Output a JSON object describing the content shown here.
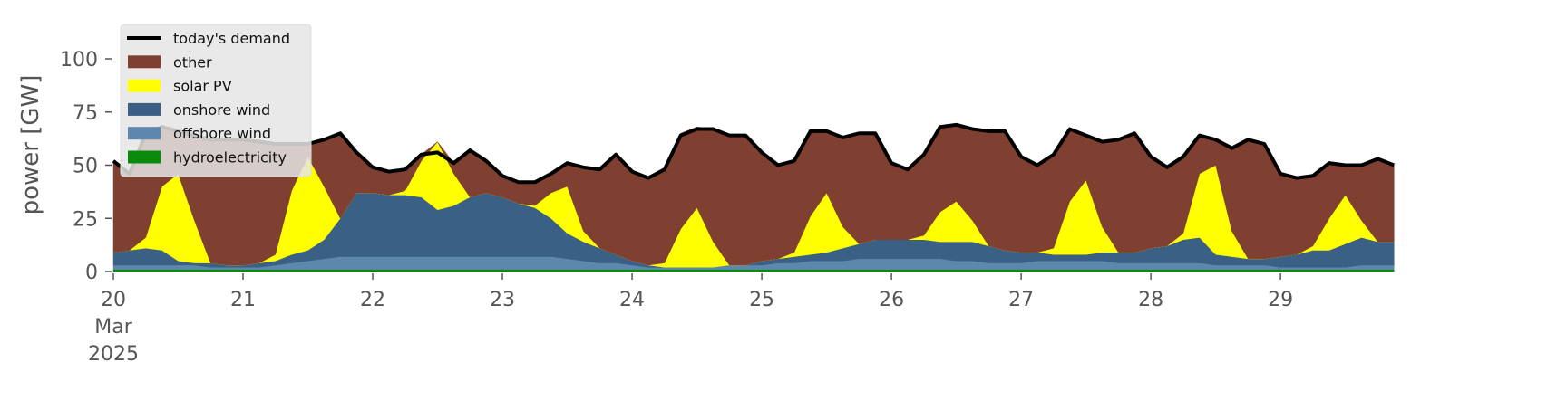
{
  "chart_data": {
    "type": "stacked_area",
    "ylabel": "power [GW]",
    "x": [
      20,
      20.125,
      20.25,
      20.375,
      20.5,
      20.625,
      20.75,
      20.875,
      21,
      21.125,
      21.25,
      21.375,
      21.5,
      21.625,
      21.75,
      21.875,
      22,
      22.125,
      22.25,
      22.375,
      22.5,
      22.625,
      22.75,
      22.875,
      23,
      23.125,
      23.25,
      23.375,
      23.5,
      23.625,
      23.75,
      23.875,
      24,
      24.125,
      24.25,
      24.375,
      24.5,
      24.625,
      24.75,
      24.875,
      25,
      25.125,
      25.25,
      25.375,
      25.5,
      25.625,
      25.75,
      25.875,
      26,
      26.125,
      26.25,
      26.375,
      26.5,
      26.625,
      26.75,
      26.875,
      27,
      27.125,
      27.25,
      27.375,
      27.5,
      27.625,
      27.75,
      27.875,
      28,
      28.125,
      28.25,
      28.375,
      28.5,
      28.625,
      28.75,
      28.875,
      29,
      29.125,
      29.25,
      29.375,
      29.5,
      29.625,
      29.75,
      29.875
    ],
    "xlim": [
      20,
      29.95
    ],
    "xticks": [
      {
        "value": 20,
        "label": "20\nMar\n2025"
      },
      21,
      22,
      23,
      24,
      25,
      26,
      27,
      28,
      29
    ],
    "ylim": [
      0,
      118
    ],
    "yticks": [
      0,
      25,
      50,
      75,
      100
    ],
    "legend": "upper left",
    "demand": {
      "name": "today's demand",
      "color": "#000000",
      "values": [
        52,
        46,
        65,
        68,
        66,
        64,
        62,
        62,
        62,
        61,
        60,
        60,
        60,
        62,
        65,
        56,
        49,
        47,
        48,
        55,
        56,
        51,
        57,
        52,
        45,
        42,
        42,
        46,
        51,
        49,
        48,
        55,
        47,
        44,
        48,
        64,
        67,
        67,
        64,
        64,
        56,
        50,
        52,
        66,
        66,
        63,
        65,
        65,
        51,
        48,
        55,
        68,
        69,
        67,
        66,
        66,
        54,
        50,
        55,
        67,
        64,
        61,
        62,
        65,
        54,
        49,
        54,
        64,
        62,
        58,
        62,
        60,
        46,
        44,
        45,
        51,
        50,
        50,
        53,
        50
      ]
    },
    "series": [
      {
        "name": "other",
        "color": "#7f3f31",
        "values": [
          43,
          36,
          49,
          28,
          20,
          40,
          58,
          59,
          59,
          57,
          52,
          22,
          6,
          22,
          40,
          19,
          12,
          11,
          10,
          3,
          0,
          5,
          22,
          15,
          10,
          10,
          11,
          9,
          11,
          30,
          37,
          47,
          42,
          41,
          44,
          45,
          38,
          53,
          61,
          61,
          51,
          44,
          43,
          40,
          29,
          42,
          52,
          50,
          36,
          33,
          38,
          40,
          36,
          43,
          54,
          56,
          45,
          41,
          44,
          34,
          21,
          40,
          53,
          56,
          43,
          37,
          36,
          18,
          12,
          39,
          56,
          54,
          39,
          36,
          33,
          26,
          14,
          26,
          39,
          36
        ]
      },
      {
        "name": "solar PV",
        "color": "#ffff00",
        "values": [
          0,
          0,
          5,
          30,
          41,
          20,
          0,
          0,
          0,
          0,
          3,
          30,
          44,
          25,
          0,
          0,
          0,
          0,
          2,
          17,
          32,
          15,
          0,
          0,
          0,
          0,
          1,
          12,
          22,
          5,
          0,
          0,
          0,
          0,
          2,
          18,
          28,
          12,
          0,
          0,
          0,
          0,
          2,
          18,
          28,
          10,
          0,
          0,
          0,
          0,
          2,
          14,
          19,
          10,
          0,
          0,
          0,
          0,
          3,
          25,
          35,
          12,
          0,
          0,
          0,
          0,
          3,
          30,
          42,
          12,
          0,
          0,
          0,
          0,
          2,
          15,
          23,
          8,
          0,
          0
        ]
      },
      {
        "name": "onshore wind",
        "color": "#3a6185",
        "values": [
          6,
          7,
          8,
          7,
          2,
          1,
          2,
          1,
          1,
          2,
          2,
          4,
          5,
          9,
          18,
          30,
          30,
          29,
          29,
          28,
          22,
          24,
          28,
          30,
          28,
          25,
          23,
          18,
          12,
          9,
          7,
          4,
          2,
          1,
          0,
          0,
          0,
          0,
          0,
          0,
          2,
          2,
          3,
          3,
          4,
          6,
          7,
          9,
          9,
          9,
          9,
          8,
          9,
          9,
          8,
          6,
          5,
          4,
          3,
          3,
          3,
          4,
          5,
          5,
          7,
          8,
          11,
          12,
          5,
          4,
          3,
          3,
          5,
          6,
          8,
          8,
          11,
          13,
          11,
          11
        ]
      },
      {
        "name": "offshore wind",
        "color": "#5d87ad",
        "values": [
          2,
          2,
          2,
          2,
          2,
          2,
          1,
          1,
          1,
          1,
          2,
          3,
          4,
          5,
          6,
          6,
          6,
          6,
          6,
          6,
          6,
          6,
          6,
          6,
          6,
          6,
          6,
          6,
          5,
          4,
          3,
          3,
          2,
          1,
          1,
          1,
          1,
          1,
          2,
          2,
          2,
          3,
          3,
          4,
          4,
          4,
          5,
          5,
          5,
          5,
          5,
          5,
          4,
          4,
          3,
          3,
          3,
          4,
          4,
          4,
          4,
          4,
          3,
          3,
          3,
          3,
          3,
          3,
          2,
          2,
          2,
          2,
          1,
          1,
          1,
          1,
          1,
          2,
          2,
          2
        ]
      },
      {
        "name": "hydroelectricity",
        "color": "#0a8a0a",
        "values": [
          1,
          1,
          1,
          1,
          1,
          1,
          1,
          1,
          1,
          1,
          1,
          1,
          1,
          1,
          1,
          1,
          1,
          1,
          1,
          1,
          1,
          1,
          1,
          1,
          1,
          1,
          1,
          1,
          1,
          1,
          1,
          1,
          1,
          1,
          1,
          1,
          1,
          1,
          1,
          1,
          1,
          1,
          1,
          1,
          1,
          1,
          1,
          1,
          1,
          1,
          1,
          1,
          1,
          1,
          1,
          1,
          1,
          1,
          1,
          1,
          1,
          1,
          1,
          1,
          1,
          1,
          1,
          1,
          1,
          1,
          1,
          1,
          1,
          1,
          1,
          1,
          1,
          1,
          1,
          1
        ]
      }
    ]
  }
}
